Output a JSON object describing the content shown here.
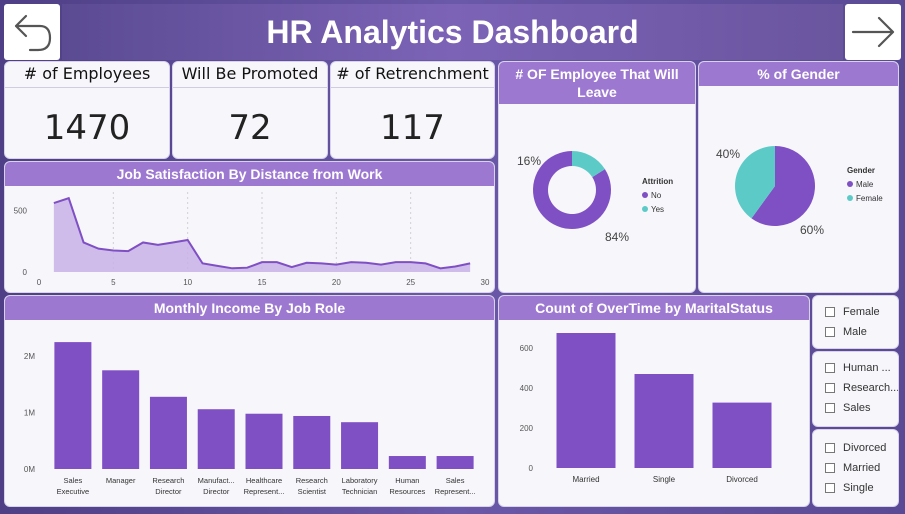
{
  "header": {
    "title": "HR Analytics Dashboard"
  },
  "kpis": [
    {
      "label": "# of Employees",
      "value": "1470"
    },
    {
      "label": "Will Be Promoted",
      "value": "72"
    },
    {
      "label": "# of Retrenchment",
      "value": "117"
    }
  ],
  "colors": {
    "purple": "#7f4fc4",
    "teal": "#5ccbc8",
    "header": "#9d78d1",
    "area": "#c9b2e6"
  },
  "job_satisfaction": {
    "title": "Job Satisfaction By Distance from Work",
    "chart_data": {
      "type": "area",
      "x": [
        1,
        2,
        3,
        4,
        5,
        6,
        7,
        8,
        9,
        10,
        11,
        12,
        13,
        14,
        15,
        16,
        17,
        18,
        19,
        20,
        21,
        22,
        23,
        24,
        25,
        26,
        27,
        28,
        29
      ],
      "values": [
        560,
        600,
        240,
        190,
        175,
        170,
        240,
        220,
        240,
        260,
        70,
        50,
        30,
        35,
        80,
        80,
        40,
        75,
        70,
        60,
        80,
        75,
        60,
        80,
        80,
        70,
        30,
        45,
        70
      ],
      "x_ticks": [
        "0",
        "5",
        "10",
        "15",
        "20",
        "25",
        "30"
      ],
      "y_ticks": [
        "0",
        "500"
      ],
      "xlim": [
        0,
        30
      ],
      "ylim": [
        0,
        650
      ]
    }
  },
  "attrition": {
    "title": "# OF Employee That Will Leave",
    "legend_title": "Attrition",
    "chart_data": {
      "type": "pie",
      "slices": [
        {
          "name": "No",
          "value": 84,
          "label": "84%",
          "color": "#7f4fc4"
        },
        {
          "name": "Yes",
          "value": 16,
          "label": "16%",
          "color": "#5ccbc8"
        }
      ]
    }
  },
  "gender": {
    "title": "% of Gender",
    "legend_title": "Gender",
    "chart_data": {
      "type": "pie",
      "slices": [
        {
          "name": "Male",
          "value": 60,
          "label": "60%",
          "color": "#7f4fc4"
        },
        {
          "name": "Female",
          "value": 40,
          "label": "40%",
          "color": "#5ccbc8"
        }
      ]
    }
  },
  "income": {
    "title": "Monthly Income By Job Role",
    "chart_data": {
      "type": "bar",
      "categories": [
        [
          "Sales",
          "Executive"
        ],
        [
          "Manager"
        ],
        [
          "Research",
          "Director"
        ],
        [
          "Manufact...",
          "Director"
        ],
        [
          "Healthcare",
          "Represent..."
        ],
        [
          "Research",
          "Scientist"
        ],
        [
          "Laboratory",
          "Technician"
        ],
        [
          "Human",
          "Resources"
        ],
        [
          "Sales",
          "Represent..."
        ]
      ],
      "values": [
        2250000,
        1750000,
        1280000,
        1060000,
        980000,
        940000,
        830000,
        230000,
        230000
      ],
      "y_ticks": [
        "0M",
        "1M",
        "2M"
      ],
      "ylim": [
        0,
        2500000
      ]
    }
  },
  "overtime": {
    "title": "Count of OverTime by MaritalStatus",
    "chart_data": {
      "type": "bar",
      "categories": [
        "Married",
        "Single",
        "Divorced"
      ],
      "values": [
        675,
        470,
        327
      ],
      "y_ticks": [
        "0",
        "200",
        "400",
        "600"
      ],
      "ylim": [
        0,
        700
      ]
    }
  },
  "slicers": {
    "gender": [
      "Female",
      "Male"
    ],
    "department": [
      "Human ...",
      "Research...",
      "Sales"
    ],
    "marital": [
      "Divorced",
      "Married",
      "Single"
    ]
  }
}
